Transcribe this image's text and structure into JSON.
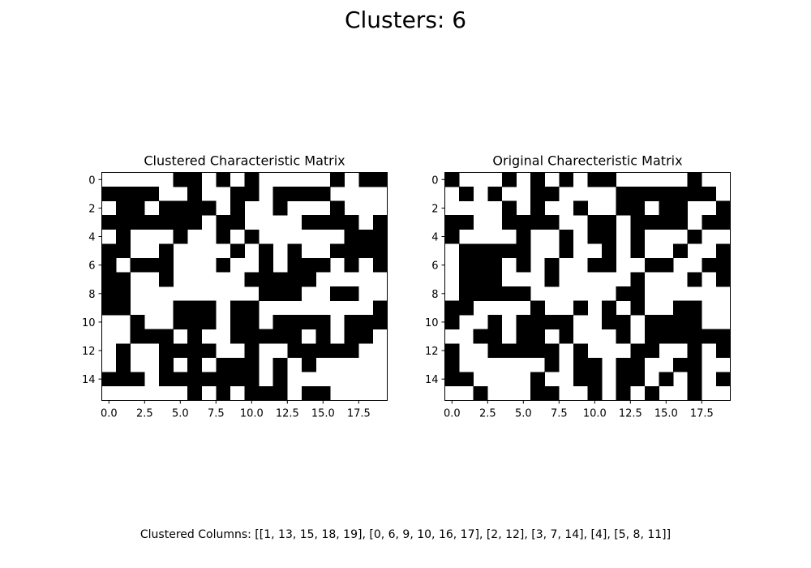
{
  "figure": {
    "suptitle": "Clusters: 6",
    "footer": "Clustered Columns: [[1, 13, 15, 18, 19], [0, 6, 9, 10, 16, 17], [2, 12], [3, 7, 14], [4], [5, 8, 11]]"
  },
  "colors": {
    "filled": "#000000",
    "empty": "#ffffff",
    "frame": "#000000"
  },
  "chart_data": [
    {
      "type": "heatmap",
      "title": "Clustered Characteristic Matrix",
      "xlabel": "",
      "ylabel": "",
      "rows": 16,
      "cols": 20,
      "xlim": [
        -0.5,
        19.5
      ],
      "ylim": [
        15.5,
        -0.5
      ],
      "x_ticks": [
        0.0,
        2.5,
        5.0,
        7.5,
        10.0,
        12.5,
        15.0,
        17.5
      ],
      "x_tick_labels": [
        "0.0",
        "2.5",
        "5.0",
        "7.5",
        "10.0",
        "12.5",
        "15.0",
        "17.5"
      ],
      "y_ticks": [
        0,
        2,
        4,
        6,
        8,
        10,
        12,
        14
      ],
      "y_tick_labels": [
        "0",
        "2",
        "4",
        "6",
        "8",
        "10",
        "12",
        "14"
      ],
      "grid": false,
      "matrix": [
        [
          0,
          0,
          0,
          0,
          0,
          1,
          1,
          0,
          1,
          0,
          1,
          0,
          0,
          0,
          0,
          0,
          1,
          0,
          1,
          1
        ],
        [
          1,
          1,
          1,
          1,
          0,
          0,
          1,
          0,
          0,
          1,
          1,
          0,
          1,
          1,
          1,
          1,
          0,
          0,
          0,
          0
        ],
        [
          0,
          1,
          1,
          0,
          1,
          1,
          1,
          1,
          0,
          1,
          0,
          0,
          1,
          0,
          0,
          0,
          1,
          0,
          0,
          0
        ],
        [
          1,
          1,
          1,
          1,
          1,
          1,
          1,
          0,
          1,
          1,
          0,
          0,
          0,
          0,
          1,
          1,
          1,
          1,
          0,
          1
        ],
        [
          0,
          1,
          0,
          0,
          0,
          1,
          0,
          0,
          1,
          0,
          1,
          0,
          0,
          0,
          0,
          0,
          0,
          1,
          1,
          1
        ],
        [
          1,
          1,
          0,
          0,
          1,
          0,
          0,
          0,
          0,
          1,
          0,
          1,
          0,
          1,
          0,
          0,
          1,
          1,
          1,
          1
        ],
        [
          1,
          0,
          1,
          1,
          1,
          0,
          0,
          0,
          1,
          0,
          0,
          1,
          0,
          1,
          1,
          1,
          0,
          1,
          0,
          1
        ],
        [
          1,
          1,
          0,
          0,
          1,
          0,
          0,
          0,
          0,
          0,
          1,
          1,
          1,
          1,
          1,
          0,
          0,
          0,
          0,
          0
        ],
        [
          1,
          1,
          0,
          0,
          0,
          0,
          0,
          0,
          0,
          0,
          0,
          1,
          1,
          1,
          0,
          0,
          1,
          1,
          0,
          0
        ],
        [
          1,
          1,
          0,
          0,
          0,
          1,
          1,
          1,
          0,
          1,
          1,
          0,
          0,
          0,
          0,
          0,
          0,
          0,
          0,
          1
        ],
        [
          0,
          0,
          1,
          0,
          0,
          1,
          1,
          1,
          0,
          1,
          1,
          0,
          1,
          1,
          1,
          1,
          0,
          1,
          1,
          1
        ],
        [
          0,
          0,
          1,
          1,
          1,
          0,
          1,
          0,
          0,
          1,
          1,
          1,
          1,
          1,
          0,
          1,
          0,
          1,
          1,
          0
        ],
        [
          0,
          1,
          0,
          0,
          1,
          1,
          1,
          1,
          0,
          0,
          1,
          0,
          0,
          1,
          1,
          1,
          1,
          1,
          0,
          0
        ],
        [
          0,
          1,
          0,
          0,
          1,
          0,
          1,
          0,
          1,
          1,
          1,
          0,
          1,
          0,
          1,
          0,
          0,
          0,
          0,
          0
        ],
        [
          1,
          1,
          1,
          0,
          1,
          1,
          1,
          1,
          1,
          1,
          1,
          0,
          1,
          0,
          0,
          0,
          0,
          0,
          0,
          0
        ],
        [
          0,
          0,
          0,
          0,
          0,
          0,
          1,
          0,
          1,
          0,
          1,
          1,
          1,
          0,
          1,
          1,
          0,
          0,
          0,
          0
        ]
      ]
    },
    {
      "type": "heatmap",
      "title": "Original Charecteristic Matrix",
      "xlabel": "",
      "ylabel": "",
      "rows": 16,
      "cols": 20,
      "xlim": [
        -0.5,
        19.5
      ],
      "ylim": [
        15.5,
        -0.5
      ],
      "x_ticks": [
        0.0,
        2.5,
        5.0,
        7.5,
        10.0,
        12.5,
        15.0,
        17.5
      ],
      "x_tick_labels": [
        "0.0",
        "2.5",
        "5.0",
        "7.5",
        "10.0",
        "12.5",
        "15.0",
        "17.5"
      ],
      "y_ticks": [
        0,
        2,
        4,
        6,
        8,
        10,
        12,
        14
      ],
      "y_tick_labels": [
        "0",
        "2",
        "4",
        "6",
        "8",
        "10",
        "12",
        "14"
      ],
      "grid": false,
      "matrix": [
        [
          1,
          0,
          0,
          0,
          1,
          0,
          1,
          0,
          1,
          0,
          1,
          1,
          0,
          0,
          0,
          0,
          0,
          1,
          0,
          0
        ],
        [
          0,
          1,
          0,
          1,
          0,
          0,
          1,
          1,
          0,
          0,
          0,
          0,
          1,
          1,
          1,
          1,
          1,
          1,
          1,
          0
        ],
        [
          0,
          0,
          0,
          0,
          1,
          0,
          1,
          0,
          0,
          1,
          0,
          0,
          1,
          1,
          0,
          1,
          1,
          0,
          0,
          1
        ],
        [
          1,
          1,
          0,
          0,
          1,
          1,
          1,
          1,
          0,
          0,
          1,
          1,
          0,
          1,
          1,
          1,
          1,
          0,
          1,
          1
        ],
        [
          1,
          0,
          0,
          0,
          0,
          1,
          0,
          0,
          1,
          0,
          1,
          1,
          0,
          1,
          0,
          0,
          0,
          1,
          0,
          0
        ],
        [
          0,
          1,
          1,
          1,
          1,
          1,
          0,
          0,
          1,
          0,
          0,
          1,
          0,
          1,
          0,
          0,
          1,
          0,
          0,
          1
        ],
        [
          0,
          1,
          1,
          1,
          0,
          1,
          0,
          1,
          0,
          0,
          1,
          1,
          0,
          0,
          1,
          1,
          0,
          0,
          1,
          1
        ],
        [
          0,
          1,
          1,
          1,
          0,
          0,
          0,
          1,
          0,
          0,
          0,
          0,
          0,
          1,
          0,
          0,
          0,
          1,
          0,
          1
        ],
        [
          0,
          1,
          1,
          1,
          1,
          1,
          0,
          0,
          0,
          0,
          0,
          0,
          1,
          1,
          0,
          0,
          0,
          0,
          0,
          0
        ],
        [
          1,
          1,
          0,
          0,
          0,
          0,
          1,
          0,
          0,
          1,
          0,
          1,
          0,
          1,
          0,
          0,
          1,
          1,
          0,
          0
        ],
        [
          1,
          0,
          0,
          1,
          0,
          1,
          1,
          1,
          1,
          0,
          0,
          1,
          1,
          0,
          1,
          1,
          1,
          1,
          0,
          0
        ],
        [
          0,
          0,
          1,
          1,
          0,
          1,
          1,
          0,
          1,
          0,
          0,
          0,
          1,
          0,
          1,
          1,
          1,
          1,
          1,
          1
        ],
        [
          1,
          0,
          0,
          1,
          1,
          1,
          1,
          1,
          0,
          1,
          0,
          0,
          0,
          1,
          1,
          0,
          0,
          1,
          0,
          1
        ],
        [
          1,
          0,
          0,
          0,
          0,
          0,
          0,
          1,
          0,
          1,
          1,
          0,
          1,
          1,
          0,
          0,
          1,
          1,
          0,
          0
        ],
        [
          1,
          1,
          0,
          0,
          0,
          0,
          1,
          0,
          0,
          1,
          1,
          0,
          1,
          1,
          0,
          1,
          0,
          1,
          0,
          1
        ],
        [
          0,
          0,
          1,
          0,
          0,
          0,
          1,
          1,
          0,
          0,
          1,
          0,
          1,
          0,
          1,
          0,
          0,
          1,
          0,
          0
        ]
      ]
    }
  ]
}
